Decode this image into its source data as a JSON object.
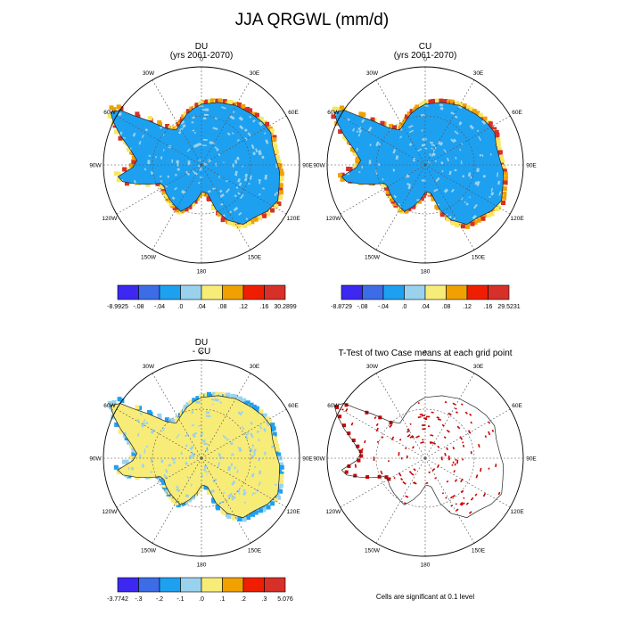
{
  "title": "JJA QRGWL (mm/d)",
  "longitude_labels": [
    "0",
    "30E",
    "60E",
    "90E",
    "120E",
    "150E",
    "180",
    "150W",
    "120W",
    "90W",
    "60W",
    "30W"
  ],
  "panels": [
    {
      "id": "du",
      "title_line1": "DU",
      "title_line2": "(yrs 2061-2070)",
      "dominant_fill": "#1ea0f0",
      "secondary_fill": "#9ad2ee",
      "coast_fill": [
        "#d63029",
        "#f0a000",
        "#f8e860"
      ],
      "colorbar": {
        "labels": [
          "-8.9925",
          "-.08",
          "-.04",
          ".0",
          ".04",
          ".08",
          ".12",
          ".16",
          "30.2899"
        ],
        "colors": [
          "#3c28f0",
          "#3c6ce6",
          "#1ea0f0",
          "#9ad2ee",
          "#f8ec78",
          "#f0a000",
          "#f01e00",
          "#d63029"
        ]
      }
    },
    {
      "id": "cu",
      "title_line1": "CU",
      "title_line2": "(yrs 2061-2070)",
      "dominant_fill": "#1ea0f0",
      "secondary_fill": "#9ad2ee",
      "coast_fill": [
        "#d63029",
        "#f0a000",
        "#f8e860"
      ],
      "colorbar": {
        "labels": [
          "-8.8729",
          "-.08",
          "-.04",
          ".0",
          ".04",
          ".08",
          ".12",
          ".16",
          "29.5231"
        ],
        "colors": [
          "#3c28f0",
          "#3c6ce6",
          "#1ea0f0",
          "#9ad2ee",
          "#f8ec78",
          "#f0a000",
          "#f01e00",
          "#d63029"
        ]
      }
    },
    {
      "id": "diff",
      "title_line1": "DU",
      "title_line2": "- CU",
      "dominant_fill": "#f8ec78",
      "secondary_fill": "#9ad2ee",
      "coast_fill": [
        "#9ad2ee",
        "#1ea0f0",
        "#f8ec78"
      ],
      "colorbar": {
        "labels": [
          "-3.7742",
          "-.3",
          "-.2",
          "-.1",
          ".0",
          ".1",
          ".2",
          ".3",
          "5.076"
        ],
        "colors": [
          "#3c28f0",
          "#3c6ce6",
          "#1ea0f0",
          "#9ad2ee",
          "#f8ec78",
          "#f0a000",
          "#f01e00",
          "#d63029"
        ]
      }
    },
    {
      "id": "ttest",
      "title_line1": "T-Test of two Case means at each grid point",
      "title_line2": "",
      "significant_fill": "#cc0000",
      "note": "Cells are significant at 0.1 level"
    }
  ]
}
